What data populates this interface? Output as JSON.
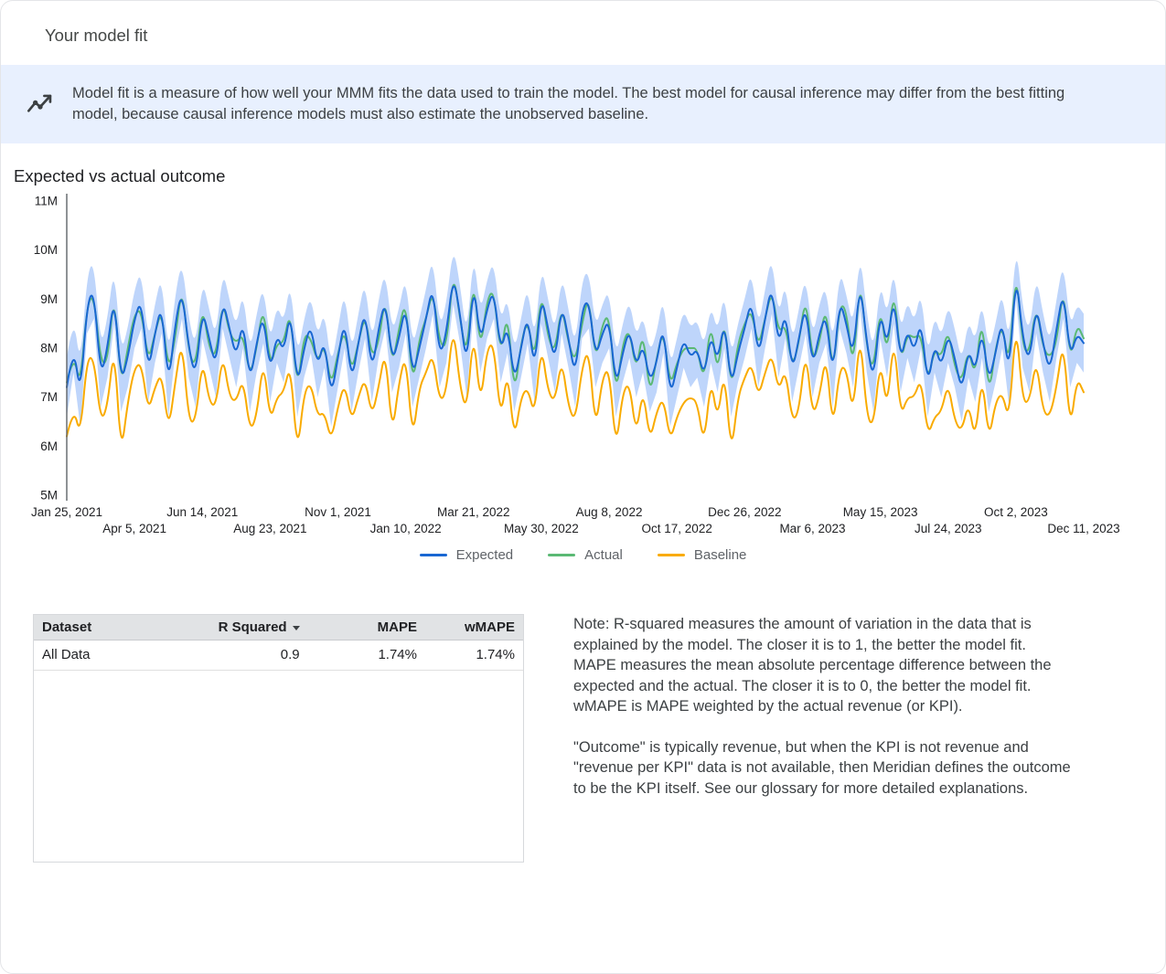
{
  "card": {
    "title": "Your model fit"
  },
  "banner": {
    "icon": "model-insights-icon",
    "text": "Model fit is a measure of how well your MMM fits the data used to train the model. The best model for causal inference may differ from the best fitting model, because causal inference models must also estimate the unobserved baseline."
  },
  "section": {
    "title": "Expected vs actual outcome"
  },
  "chart_data": {
    "type": "line",
    "title": "Expected vs actual outcome",
    "frequency": "weekly",
    "x_range": [
      "Jan 25, 2021",
      "Dec 11, 2023"
    ],
    "ylim": [
      5,
      11
    ],
    "y_unit": "M",
    "y_ticks": [
      "5M",
      "6M",
      "7M",
      "8M",
      "9M",
      "10M",
      "11M"
    ],
    "x_tick_interval_weeks": 10,
    "x_tick_labels": [
      "Jan 25, 2021",
      "Apr 5, 2021",
      "Jun 14, 2021",
      "Aug 23, 2021",
      "Nov 1, 2021",
      "Jan 10, 2022",
      "Mar 21, 2022",
      "May 30, 2022",
      "Aug 8, 2022",
      "Oct 17, 2022",
      "Dec 26, 2022",
      "Mar 6, 2023",
      "May 15, 2023",
      "Jul 24, 2023",
      "Oct 2, 2023",
      "Dec 11, 2023"
    ],
    "grid": false,
    "legend_position": "bottom",
    "band": {
      "around": "Expected",
      "halfwidth": 0.6,
      "color": "#a8c7fa",
      "opacity": 0.75
    },
    "series": [
      {
        "name": "Expected",
        "color": "#1967d2",
        "values": [
          7.2,
          8.1,
          7.0,
          8.9,
          9.2,
          7.4,
          8.0,
          9.1,
          7.3,
          7.8,
          8.6,
          9.0,
          7.5,
          8.3,
          8.9,
          7.2,
          8.5,
          9.2,
          8.0,
          7.4,
          8.8,
          8.2,
          7.6,
          9.0,
          8.4,
          7.8,
          8.6,
          7.3,
          8.1,
          8.7,
          7.5,
          8.3,
          7.9,
          8.8,
          7.2,
          8.0,
          8.5,
          7.6,
          8.2,
          7.0,
          7.8,
          8.6,
          7.3,
          8.1,
          8.8,
          7.5,
          8.4,
          9.0,
          7.7,
          8.2,
          8.9,
          7.4,
          8.0,
          8.6,
          9.3,
          7.8,
          8.3,
          9.5,
          8.7,
          7.6,
          9.4,
          8.1,
          8.8,
          9.2,
          7.9,
          8.5,
          7.3,
          8.0,
          8.7,
          7.5,
          9.1,
          8.4,
          7.7,
          8.9,
          8.2,
          7.4,
          8.8,
          9.0,
          7.8,
          8.3,
          8.6,
          7.2,
          7.9,
          8.4,
          7.6,
          8.1,
          7.3,
          7.7,
          8.5,
          7.0,
          7.6,
          8.2,
          7.8,
          8.0,
          7.4,
          8.3,
          7.7,
          8.6,
          7.2,
          7.9,
          8.4,
          9.0,
          7.8,
          8.6,
          9.3,
          8.0,
          8.8,
          7.5,
          8.2,
          8.9,
          7.6,
          8.3,
          8.7,
          7.4,
          9.0,
          8.5,
          7.8,
          9.4,
          8.1,
          7.3,
          8.8,
          8.0,
          9.1,
          7.7,
          8.4,
          7.9,
          8.6,
          7.2,
          8.1,
          7.6,
          8.3,
          7.8,
          7.1,
          8.0,
          7.5,
          8.4,
          7.3,
          7.9,
          8.6,
          7.4,
          9.6,
          8.2,
          7.7,
          8.9,
          8.1,
          7.5,
          8.4,
          9.2,
          7.8,
          8.3,
          8.1
        ]
      },
      {
        "name": "Actual",
        "color": "#5bb974",
        "values": [
          7.3,
          7.9,
          7.2,
          8.9,
          9.1,
          7.7,
          7.7,
          9.2,
          7.2,
          8.0,
          8.7,
          8.8,
          7.7,
          8.3,
          8.8,
          7.5,
          8.2,
          9.3,
          7.9,
          7.6,
          8.9,
          8.0,
          7.8,
          9.0,
          8.3,
          8.1,
          8.3,
          7.4,
          8.0,
          8.9,
          7.6,
          8.1,
          8.1,
          8.8,
          7.1,
          8.3,
          8.2,
          7.7,
          8.1,
          7.2,
          7.9,
          8.4,
          7.5,
          8.1,
          8.7,
          7.8,
          8.1,
          9.1,
          7.6,
          8.4,
          9.0,
          7.2,
          8.2,
          8.6,
          9.2,
          8.1,
          8.0,
          9.6,
          8.6,
          7.8,
          9.5,
          7.9,
          9.0,
          9.2,
          7.8,
          8.8,
          7.0,
          8.1,
          8.6,
          7.7,
          9.2,
          8.2,
          7.9,
          8.9,
          8.1,
          7.7,
          8.5,
          9.1,
          7.7,
          8.5,
          8.7,
          7.0,
          8.1,
          8.4,
          7.5,
          8.4,
          7.0,
          7.8,
          8.4,
          7.2,
          7.7,
          8.0,
          8.0,
          8.0,
          7.3,
          8.6,
          7.4,
          8.7,
          7.1,
          8.1,
          8.5,
          8.8,
          8.0,
          8.6,
          9.2,
          8.3,
          8.5,
          7.6,
          8.1,
          9.1,
          7.7,
          8.1,
          8.9,
          7.4,
          8.9,
          8.8,
          7.5,
          9.5,
          8.0,
          7.5,
          8.9,
          7.8,
          9.3,
          7.7,
          8.3,
          8.2,
          8.3,
          7.3,
          8.0,
          7.8,
          8.4,
          7.6,
          7.3,
          8.0,
          7.4,
          8.7,
          7.0,
          8.0,
          8.5,
          7.6,
          9.7,
          8.0,
          7.9,
          8.9,
          8.0,
          7.8,
          8.1,
          9.3,
          7.7,
          8.5,
          8.2
        ]
      },
      {
        "name": "Baseline",
        "color": "#f9ab00",
        "values": [
          6.2,
          6.8,
          6.2,
          7.8,
          7.8,
          6.5,
          6.8,
          8.1,
          5.8,
          6.9,
          7.6,
          7.7,
          6.7,
          7.2,
          7.5,
          6.3,
          7.3,
          8.2,
          6.5,
          6.5,
          7.8,
          6.9,
          6.8,
          7.9,
          7.0,
          6.9,
          7.4,
          6.3,
          6.6,
          7.8,
          6.5,
          7.0,
          7.1,
          7.7,
          5.8,
          7.1,
          7.3,
          6.6,
          6.7,
          6.1,
          6.8,
          7.3,
          6.5,
          7.0,
          7.4,
          6.6,
          7.2,
          8.0,
          6.2,
          7.3,
          7.9,
          6.1,
          7.2,
          7.5,
          7.9,
          6.9,
          7.1,
          8.5,
          7.2,
          6.7,
          8.4,
          6.8,
          8.0,
          8.1,
          6.5,
          7.6,
          6.1,
          7.0,
          7.2,
          6.6,
          8.1,
          7.1,
          6.9,
          7.8,
          6.8,
          6.5,
          7.6,
          8.0,
          6.3,
          7.4,
          7.6,
          5.9,
          7.1,
          7.3,
          6.2,
          7.2,
          6.1,
          6.7,
          7.0,
          6.1,
          6.6,
          6.9,
          7.0,
          6.9,
          6.0,
          7.4,
          6.5,
          7.6,
          5.8,
          7.0,
          7.4,
          7.7,
          7.0,
          7.5,
          7.9,
          7.1,
          7.6,
          6.5,
          6.7,
          8.0,
          6.6,
          7.0,
          7.9,
          6.3,
          7.6,
          7.6,
          6.6,
          8.4,
          6.6,
          6.4,
          7.8,
          6.7,
          8.3,
          6.6,
          7.0,
          7.0,
          7.4,
          6.2,
          6.6,
          6.7,
          7.3,
          6.5,
          6.3,
          6.9,
          6.1,
          7.5,
          6.1,
          6.9,
          7.1,
          6.5,
          8.6,
          6.9,
          6.9,
          7.8,
          6.7,
          6.6,
          7.2,
          8.2,
          6.3,
          7.4,
          7.1
        ]
      }
    ]
  },
  "table": {
    "columns": [
      {
        "label": "Dataset"
      },
      {
        "label": "R Squared",
        "sorted": "desc"
      },
      {
        "label": "MAPE"
      },
      {
        "label": "wMAPE"
      }
    ],
    "rows": [
      [
        "All Data",
        "0.9",
        "1.74%",
        "1.74%"
      ]
    ]
  },
  "notes": {
    "p1": "Note: R-squared measures the amount of variation in the data that is explained by the model. The closer it is to 1, the better the model fit. MAPE measures the mean absolute percentage difference between the expected and the actual. The closer it is to 0, the better the model fit. wMAPE is MAPE weighted by the actual revenue (or KPI).",
    "p2": "\"Outcome\" is typically revenue, but when the KPI is not revenue and \"revenue per KPI\" data is not available, then Meridian defines the outcome to be the KPI itself. See our glossary for more detailed explanations."
  }
}
